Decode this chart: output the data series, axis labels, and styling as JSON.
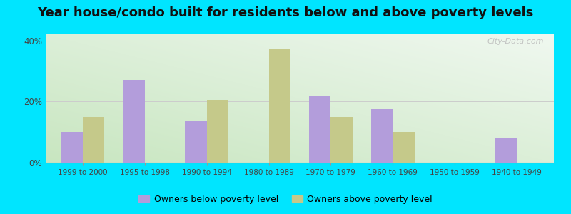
{
  "title": "Year house/condo built for residents below and above poverty levels",
  "categories": [
    "1999 to 2000",
    "1995 to 1998",
    "1990 to 1994",
    "1980 to 1989",
    "1970 to 1979",
    "1960 to 1969",
    "1950 to 1959",
    "1940 to 1949"
  ],
  "below_poverty": [
    10.0,
    27.0,
    13.5,
    0.0,
    22.0,
    17.5,
    0.0,
    8.0
  ],
  "above_poverty": [
    15.0,
    0.0,
    20.5,
    37.0,
    15.0,
    10.0,
    0.0,
    0.0
  ],
  "below_color": "#b39ddb",
  "above_color": "#c5c98a",
  "ylim": [
    0,
    42
  ],
  "yticks": [
    0,
    20,
    40
  ],
  "ytick_labels": [
    "0%",
    "20%",
    "40%"
  ],
  "bar_width": 0.35,
  "bg_color_bottom_left": "#c8e6c0",
  "bg_color_top_right": "#f0f8f0",
  "outer_bg": "#00e5ff",
  "legend_below": "Owners below poverty level",
  "legend_above": "Owners above poverty level",
  "title_fontsize": 13,
  "watermark": "City-Data.com"
}
